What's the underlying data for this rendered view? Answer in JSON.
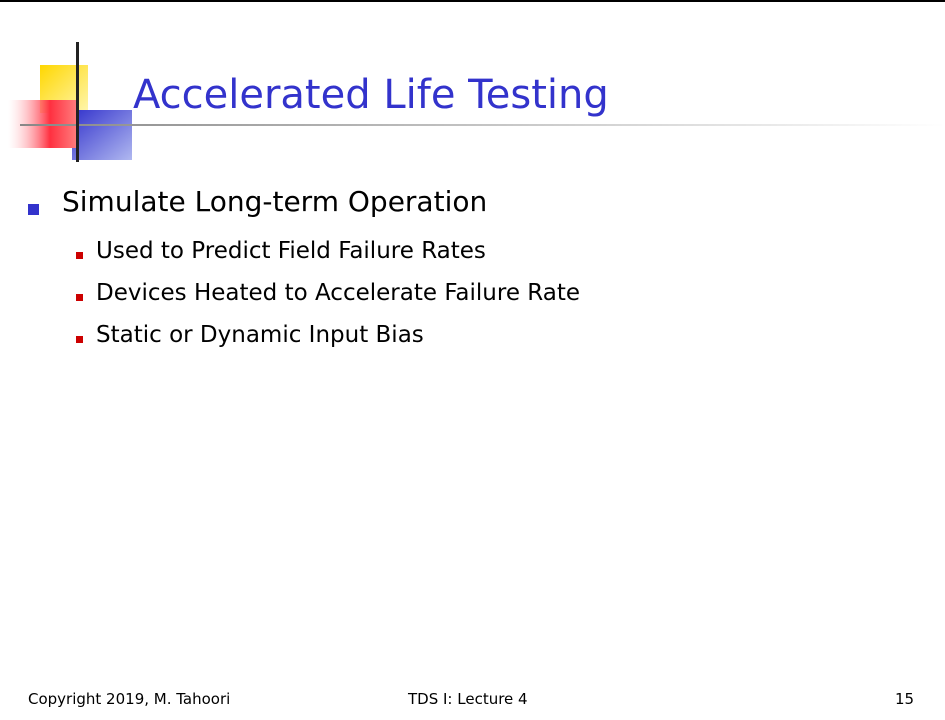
{
  "title": "Accelerated Life Testing",
  "bullets": [
    {
      "text": "Simulate Long-term Operation",
      "children": [
        "Used to Predict Field Failure Rates",
        "Devices Heated to Accelerate Failure Rate",
        "Static or Dynamic Input Bias"
      ]
    }
  ],
  "footer": {
    "left": "Copyright 2019, M. Tahoori",
    "center": "TDS I: Lecture 4",
    "right": "15"
  }
}
